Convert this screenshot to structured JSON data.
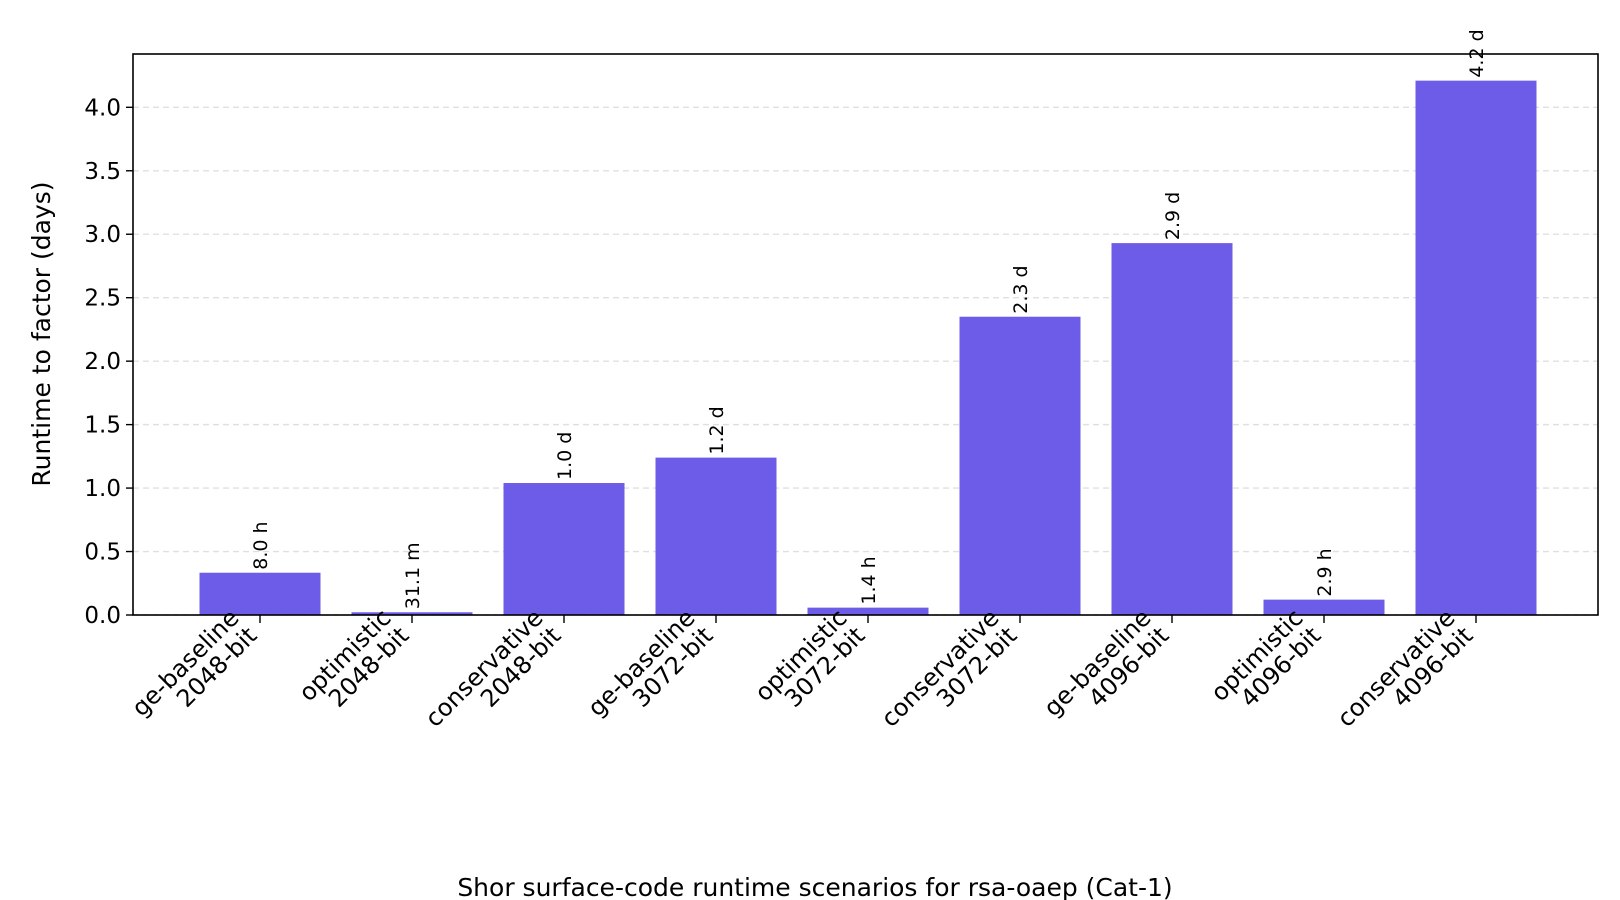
{
  "colors": {
    "bar": "#6c5ce7",
    "grid": "#e0e0e0",
    "axis": "#000000"
  },
  "chart_data": {
    "type": "bar",
    "title": "",
    "xlabel": "",
    "ylabel": "Runtime to factor (days)",
    "caption": "Shor surface-code runtime scenarios for rsa-oaep (Cat-1)",
    "ylim": [
      0,
      4.42
    ],
    "yticks": [
      0.0,
      0.5,
      1.0,
      1.5,
      2.0,
      2.5,
      3.0,
      3.5,
      4.0
    ],
    "ytick_labels": [
      "0.0",
      "0.5",
      "1.0",
      "1.5",
      "2.0",
      "2.5",
      "3.0",
      "3.5",
      "4.0"
    ],
    "grid": "horizontal dashed",
    "categories": [
      [
        "ge-baseline",
        "2048-bit"
      ],
      [
        "optimistic",
        "2048-bit"
      ],
      [
        "conservative",
        "2048-bit"
      ],
      [
        "ge-baseline",
        "3072-bit"
      ],
      [
        "optimistic",
        "3072-bit"
      ],
      [
        "conservative",
        "3072-bit"
      ],
      [
        "ge-baseline",
        "4096-bit"
      ],
      [
        "optimistic",
        "4096-bit"
      ],
      [
        "conservative",
        "4096-bit"
      ]
    ],
    "values": [
      0.333,
      0.0216,
      1.04,
      1.24,
      0.058,
      2.35,
      2.93,
      0.121,
      4.21
    ],
    "data_labels": [
      "8.0 h",
      "31.1 m",
      "1.0 d",
      "1.2 d",
      "1.4 h",
      "2.3 d",
      "2.9 d",
      "2.9 h",
      "4.2 d"
    ]
  }
}
